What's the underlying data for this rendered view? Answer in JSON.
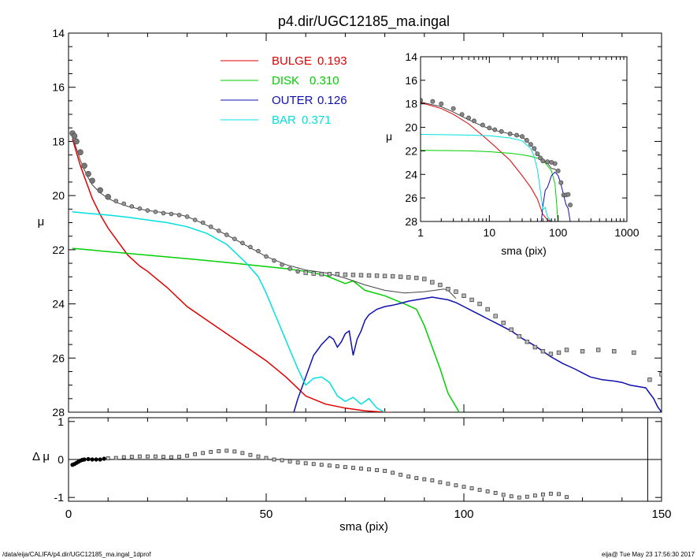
{
  "page": {
    "footer_left": "/data/eija/CALIFA/p4.dir/UGC12185_ma.ingal_1dprof",
    "footer_right": "eija@  Tue May 23 17:56:30 2017"
  },
  "chart_data": [
    {
      "type": "line",
      "title": "p4.dir/UGC12185_ma.ingal",
      "xlabel": "sma (pix)",
      "ylabel": "μ",
      "xlim": [
        0,
        150
      ],
      "ylim": [
        28,
        14
      ],
      "xticks": [
        0,
        50,
        100,
        150
      ],
      "yticks": [
        14,
        16,
        18,
        20,
        22,
        24,
        26,
        28
      ],
      "legend_placement": "top-center",
      "legend": [
        {
          "name": "BULGE",
          "value": "0.193",
          "color": "#e00000"
        },
        {
          "name": "DISK",
          "value": "0.310",
          "color": "#00d000"
        },
        {
          "name": "OUTER",
          "value": "0.126",
          "color": "#1010b0"
        },
        {
          "name": "BAR",
          "value": "0.371",
          "color": "#00e0e0"
        }
      ],
      "series": [
        {
          "name": "BULGE",
          "color": "#e00000",
          "x": [
            1,
            2,
            3,
            4,
            5,
            6,
            8,
            10,
            12,
            15,
            18,
            20,
            25,
            30,
            35,
            40,
            45,
            50,
            55,
            60,
            65,
            70,
            75,
            80,
            85,
            90
          ],
          "y": [
            17.9,
            18.4,
            18.9,
            19.3,
            19.7,
            20.1,
            20.7,
            21.2,
            21.6,
            22.2,
            22.6,
            22.8,
            23.4,
            24.1,
            24.6,
            25.1,
            25.6,
            26.1,
            26.7,
            27.4,
            27.7,
            27.85,
            27.95,
            28.0,
            28.05,
            28.1
          ]
        },
        {
          "name": "DISK",
          "color": "#00d000",
          "x": [
            1,
            5,
            10,
            20,
            30,
            40,
            50,
            55,
            60,
            65,
            70,
            72,
            75,
            80,
            85,
            88,
            90,
            92,
            94,
            96,
            98,
            100
          ],
          "y": [
            21.95,
            22.0,
            22.07,
            22.2,
            22.33,
            22.47,
            22.62,
            22.7,
            22.8,
            22.95,
            23.25,
            23.15,
            23.5,
            23.7,
            24.0,
            24.2,
            24.8,
            25.6,
            26.4,
            27.3,
            27.8,
            28.3
          ]
        },
        {
          "name": "OUTER",
          "color": "#1010b0",
          "x": [
            57,
            58,
            59,
            60,
            61,
            62,
            63,
            64,
            65,
            66,
            67,
            68,
            69,
            70,
            71,
            72,
            73,
            74,
            75,
            76,
            78,
            80,
            82,
            84,
            86,
            88,
            90,
            92,
            94,
            96,
            98,
            100,
            102,
            104,
            106,
            108,
            110,
            112,
            115,
            118,
            120,
            122,
            125,
            128,
            130,
            132,
            135,
            138,
            140,
            142,
            144,
            146,
            147,
            148,
            149,
            150
          ],
          "y": [
            28.0,
            27.5,
            27.1,
            26.7,
            26.3,
            25.9,
            25.7,
            25.5,
            25.35,
            25.2,
            25.3,
            25.6,
            25.4,
            25.1,
            25.0,
            25.9,
            25.3,
            25.0,
            24.6,
            24.4,
            24.2,
            24.1,
            24.05,
            23.98,
            23.9,
            23.85,
            23.8,
            23.75,
            23.8,
            23.85,
            23.95,
            24.1,
            24.25,
            24.4,
            24.55,
            24.7,
            24.85,
            25.0,
            25.3,
            25.55,
            25.75,
            25.95,
            26.2,
            26.4,
            26.55,
            26.7,
            26.8,
            26.85,
            26.9,
            27.0,
            27.05,
            27.1,
            27.3,
            27.5,
            27.8,
            28.0
          ]
        },
        {
          "name": "BAR",
          "color": "#00e0e0",
          "x": [
            1,
            5,
            10,
            15,
            20,
            25,
            30,
            35,
            40,
            45,
            48,
            50,
            52,
            54,
            56,
            58,
            60,
            62,
            64,
            66,
            68,
            70,
            72,
            74,
            76,
            78,
            80
          ],
          "y": [
            20.6,
            20.66,
            20.72,
            20.8,
            20.9,
            21.0,
            21.15,
            21.4,
            21.8,
            22.5,
            23.0,
            23.6,
            24.3,
            25.0,
            25.7,
            26.4,
            27.0,
            26.75,
            26.7,
            26.9,
            27.4,
            27.6,
            27.45,
            27.7,
            27.5,
            27.85,
            28.0
          ]
        },
        {
          "name": "total",
          "color": "#444444",
          "x": [
            1,
            2,
            3,
            4,
            5,
            6,
            8,
            10,
            12,
            15,
            18,
            20,
            25,
            28,
            30,
            32,
            35,
            40,
            45,
            50,
            55,
            60,
            65,
            70,
            75,
            80,
            85,
            90,
            95,
            96,
            97,
            98
          ],
          "y": [
            17.85,
            18.25,
            18.7,
            19.05,
            19.35,
            19.6,
            19.9,
            20.1,
            20.25,
            20.4,
            20.5,
            20.55,
            20.65,
            20.7,
            20.78,
            20.9,
            21.1,
            21.45,
            21.85,
            22.25,
            22.55,
            22.75,
            22.85,
            23.05,
            23.3,
            23.5,
            23.6,
            23.55,
            23.45,
            23.5,
            23.65,
            23.8
          ]
        },
        {
          "name": "observed",
          "color": "#333333",
          "x": [
            1,
            1.5,
            2,
            3,
            4,
            5,
            6,
            8,
            10,
            12,
            14,
            16,
            18,
            20,
            22,
            24,
            26,
            28,
            30,
            32,
            34,
            36,
            38,
            40,
            42,
            44,
            46,
            48,
            50,
            52,
            54,
            56,
            58,
            60,
            62,
            64,
            66,
            68,
            70,
            72,
            74,
            76,
            78,
            80,
            82,
            84,
            86,
            88,
            90,
            92,
            94,
            96,
            98,
            100,
            102,
            104,
            106,
            108,
            110,
            112,
            114,
            116,
            118,
            120,
            122,
            124,
            126,
            130,
            134,
            138,
            143,
            147,
            150
          ],
          "y": [
            17.7,
            17.8,
            18.0,
            18.4,
            18.9,
            19.2,
            19.45,
            19.8,
            20.05,
            20.2,
            20.3,
            20.4,
            20.48,
            20.55,
            20.6,
            20.65,
            20.68,
            20.72,
            20.78,
            20.9,
            21.0,
            21.15,
            21.3,
            21.45,
            21.6,
            21.75,
            21.9,
            22.05,
            22.25,
            22.4,
            22.55,
            22.7,
            22.8,
            22.85,
            22.88,
            22.9,
            22.9,
            22.9,
            22.92,
            22.93,
            22.94,
            22.95,
            22.96,
            22.97,
            22.98,
            23.0,
            23.02,
            23.04,
            23.08,
            23.2,
            23.3,
            23.45,
            23.55,
            23.7,
            23.85,
            24.0,
            24.2,
            24.45,
            24.7,
            24.95,
            25.2,
            25.4,
            25.6,
            25.75,
            25.85,
            25.8,
            25.7,
            25.75,
            25.7,
            25.75,
            25.8,
            26.8,
            26.6
          ]
        }
      ]
    },
    {
      "type": "line",
      "xlabel": "sma (pix)",
      "ylabel": "μ",
      "xscale": "log",
      "xlim": [
        1,
        1000
      ],
      "ylim": [
        28,
        14
      ],
      "xtick_labels": [
        "1",
        "10",
        "100",
        "1000"
      ],
      "yticks": [
        14,
        16,
        18,
        20,
        22,
        24,
        26,
        28
      ],
      "series": [
        {
          "name": "BULGE",
          "color": "#e00000",
          "x": [
            1,
            2,
            3,
            5,
            8,
            12,
            20,
            30,
            40,
            50,
            60,
            70,
            80
          ],
          "y": [
            17.9,
            18.4,
            18.9,
            19.7,
            20.7,
            21.6,
            22.8,
            24.1,
            25.1,
            26.1,
            27.4,
            27.85,
            28.0
          ]
        },
        {
          "name": "DISK",
          "color": "#00d000",
          "x": [
            1,
            5,
            10,
            20,
            30,
            40,
            50,
            60,
            70,
            80,
            90,
            95,
            100
          ],
          "y": [
            21.95,
            22.0,
            22.07,
            22.2,
            22.33,
            22.47,
            22.62,
            22.8,
            23.25,
            23.7,
            24.8,
            26.4,
            28.3
          ]
        },
        {
          "name": "OUTER",
          "color": "#1010b0",
          "x": [
            57,
            60,
            65,
            70,
            75,
            80,
            90,
            100,
            110,
            120,
            130,
            140,
            150
          ],
          "y": [
            28.0,
            26.7,
            25.35,
            25.1,
            24.6,
            24.1,
            23.8,
            24.1,
            24.85,
            25.75,
            26.55,
            26.9,
            28.0
          ]
        },
        {
          "name": "BAR",
          "color": "#00e0e0",
          "x": [
            1,
            5,
            10,
            20,
            30,
            40,
            45,
            50,
            55,
            60,
            65,
            70,
            80
          ],
          "y": [
            20.6,
            20.66,
            20.72,
            20.9,
            21.15,
            21.8,
            22.5,
            23.6,
            25.3,
            27.0,
            26.8,
            27.6,
            28.0
          ]
        },
        {
          "name": "total",
          "color": "#444444",
          "x": [
            1,
            2,
            3,
            5,
            8,
            12,
            20,
            30,
            40,
            50,
            60,
            70,
            80,
            90,
            98
          ],
          "y": [
            17.85,
            18.25,
            18.7,
            19.35,
            19.9,
            20.25,
            20.55,
            20.78,
            21.45,
            22.25,
            22.75,
            23.05,
            23.5,
            23.55,
            23.8
          ]
        },
        {
          "name": "observed",
          "color": "#333333",
          "x": [
            1,
            1.5,
            2,
            3,
            4,
            5,
            6,
            8,
            10,
            12,
            15,
            20,
            25,
            30,
            35,
            40,
            45,
            50,
            55,
            60,
            70,
            80,
            90,
            100,
            110,
            120,
            130,
            140,
            150
          ],
          "y": [
            17.7,
            17.8,
            18.0,
            18.4,
            18.9,
            19.2,
            19.45,
            19.8,
            20.05,
            20.2,
            20.35,
            20.55,
            20.67,
            20.78,
            21.1,
            21.45,
            21.8,
            22.25,
            22.6,
            22.85,
            22.92,
            22.97,
            23.08,
            23.7,
            24.7,
            25.75,
            25.75,
            25.7,
            26.6
          ]
        }
      ]
    },
    {
      "type": "scatter",
      "xlabel": "sma (pix)",
      "ylabel": "Δ μ",
      "xlim": [
        0,
        150
      ],
      "ylim": [
        -1.1,
        1.1
      ],
      "xticks": [
        0,
        50,
        100,
        150
      ],
      "yticks": [
        -1,
        0,
        1
      ],
      "reference_lines": {
        "y": 0,
        "x": 146.5
      },
      "series": [
        {
          "name": "residual",
          "color": "#333333",
          "x": [
            1,
            1.5,
            2,
            2.5,
            3,
            3.5,
            4,
            5,
            6,
            7,
            8,
            9,
            10,
            12,
            14,
            16,
            18,
            20,
            22,
            24,
            26,
            28,
            30,
            32,
            34,
            36,
            38,
            40,
            42,
            44,
            46,
            48,
            50,
            52,
            54,
            56,
            58,
            60,
            62,
            64,
            66,
            68,
            70,
            72,
            74,
            76,
            78,
            80,
            82,
            84,
            86,
            88,
            90,
            92,
            94,
            96,
            98,
            100,
            102,
            104,
            106,
            108,
            110,
            112,
            114,
            116,
            118,
            120,
            122,
            124,
            126
          ],
          "y": [
            -0.14,
            -0.12,
            -0.09,
            -0.06,
            -0.03,
            -0.01,
            0.0,
            0.01,
            0.0,
            0.0,
            0.0,
            0.02,
            0.03,
            0.04,
            0.06,
            0.07,
            0.08,
            0.08,
            0.08,
            0.07,
            0.06,
            0.07,
            0.1,
            0.14,
            0.17,
            0.2,
            0.22,
            0.23,
            0.21,
            0.17,
            0.12,
            0.08,
            0.04,
            0.0,
            -0.02,
            -0.05,
            -0.08,
            -0.1,
            -0.12,
            -0.14,
            -0.16,
            -0.18,
            -0.2,
            -0.22,
            -0.24,
            -0.26,
            -0.28,
            -0.3,
            -0.35,
            -0.4,
            -0.45,
            -0.49,
            -0.52,
            -0.55,
            -0.6,
            -0.64,
            -0.68,
            -0.72,
            -0.76,
            -0.8,
            -0.84,
            -0.88,
            -0.93,
            -0.97,
            -1.0,
            -0.98,
            -0.95,
            -0.92,
            -0.9,
            -0.91,
            -0.99
          ]
        }
      ]
    }
  ]
}
